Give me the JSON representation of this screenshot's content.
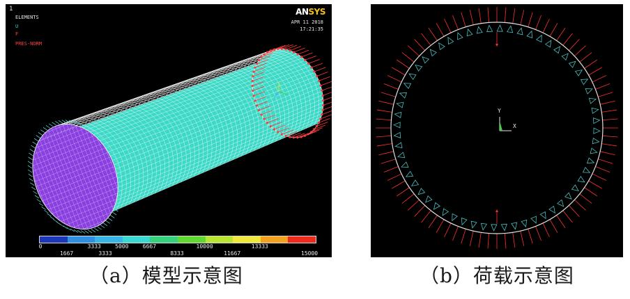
{
  "panel_a": {
    "window_number": "1",
    "legend_lines": [
      "ELEMENTS",
      "U",
      "F",
      "PRES-NORM"
    ],
    "logo": {
      "an": "AN",
      "sys": "SYS"
    },
    "date": "APR 11 2018",
    "time": "17:21:35",
    "contour": {
      "top_ticks": [
        "0",
        "3333",
        "5000",
        "6667",
        "10000",
        "13333"
      ],
      "bottom_ticks": [
        "1667",
        "3333",
        "8333",
        "11667",
        "15000"
      ],
      "colors": [
        "#1e36b8",
        "#2f8fe0",
        "#37b6e6",
        "#39d8d0",
        "#34d27c",
        "#5fd832",
        "#b8e630",
        "#f0e83a",
        "#f4a21e",
        "#ee2a1e"
      ]
    },
    "colors": {
      "mesh_fill": "#3cd9c6",
      "end_face": "#8a3fe0",
      "pressure": "#ff3a3a",
      "constraint": "#5fe8e0"
    }
  },
  "panel_b": {
    "axis_x": "X",
    "axis_y": "Y",
    "colors": {
      "ring": "#e0e0e0",
      "pressure": "#ff3030",
      "constraint": "#49c0c0",
      "axis_y": "#e8e8e8",
      "axis_x": "#e8e8e8",
      "triad": "#44d044"
    }
  },
  "captions": {
    "a": "（a）模型示意图",
    "b": "（b）荷载示意图"
  }
}
